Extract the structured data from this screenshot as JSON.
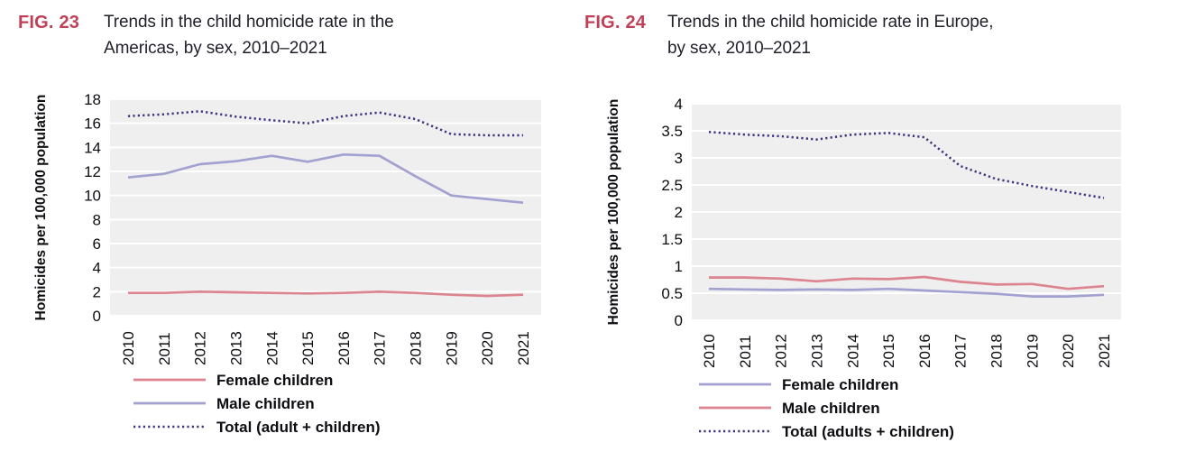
{
  "page": {
    "background": "#ffffff",
    "accent_fig_color": "#bf4157",
    "plot_background": "#efefef",
    "gridline_color": "#ffffff"
  },
  "chart_data": [
    {
      "type": "line",
      "fig_label": "FIG. 23",
      "title_line1": "Trends in the child homicide rate in the",
      "title_line2": "Americas, by sex, 2010–2021",
      "ylabel": "Homicides per 100,000 population",
      "xlabel": "",
      "categories": [
        "2010",
        "2011",
        "2012",
        "2013",
        "2014",
        "2015",
        "2016",
        "2017",
        "2018",
        "2019",
        "2020",
        "2021"
      ],
      "ylim": [
        0,
        18
      ],
      "ytick_labels": [
        "0",
        "2",
        "4",
        "6",
        "8",
        "10",
        "12",
        "14",
        "16",
        "18"
      ],
      "grid": true,
      "legend_position": "bottom-left",
      "series": [
        {
          "name": "Female children",
          "color": "#dc8490",
          "style": "solid",
          "values": [
            1.9,
            1.9,
            2.0,
            1.95,
            1.9,
            1.85,
            1.9,
            2.0,
            1.9,
            1.75,
            1.65,
            1.75
          ]
        },
        {
          "name": "Male children",
          "color": "#a3a1d0",
          "style": "solid",
          "values": [
            11.5,
            11.8,
            12.6,
            12.85,
            13.3,
            12.8,
            13.4,
            13.3,
            11.6,
            10.0,
            9.7,
            9.4
          ]
        },
        {
          "name": "Total (adult + children)",
          "color": "#40307d",
          "style": "dotted",
          "values": [
            16.6,
            16.75,
            17.0,
            16.55,
            16.25,
            16.0,
            16.6,
            16.9,
            16.35,
            15.1,
            15.0,
            15.0
          ]
        }
      ]
    },
    {
      "type": "line",
      "fig_label": "FIG. 24",
      "title_line1": "Trends in the child homicide rate in Europe,",
      "title_line2": "by sex, 2010–2021",
      "ylabel": "Homicides per 100,000 population",
      "xlabel": "",
      "categories": [
        "2010",
        "2011",
        "2012",
        "2013",
        "2014",
        "2015",
        "2016",
        "2017",
        "2018",
        "2019",
        "2020",
        "2021"
      ],
      "ylim": [
        0,
        4
      ],
      "ytick_labels": [
        "0",
        "0.5",
        "1",
        "1.5",
        "2",
        "2.5",
        "3",
        "3.5",
        "4"
      ],
      "grid": true,
      "legend_position": "bottom-left",
      "series": [
        {
          "name": "Female children",
          "color": "#a3a1d0",
          "style": "solid",
          "values": [
            0.58,
            0.57,
            0.56,
            0.57,
            0.56,
            0.58,
            0.55,
            0.52,
            0.49,
            0.44,
            0.44,
            0.47
          ]
        },
        {
          "name": "Male children",
          "color": "#dc8490",
          "style": "solid",
          "values": [
            0.79,
            0.79,
            0.77,
            0.72,
            0.77,
            0.76,
            0.8,
            0.71,
            0.66,
            0.67,
            0.58,
            0.63
          ]
        },
        {
          "name": "Total (adults + children)",
          "color": "#40307d",
          "style": "dotted",
          "values": [
            3.48,
            3.43,
            3.4,
            3.34,
            3.43,
            3.46,
            3.38,
            2.85,
            2.61,
            2.48,
            2.37,
            2.26
          ]
        }
      ]
    }
  ]
}
